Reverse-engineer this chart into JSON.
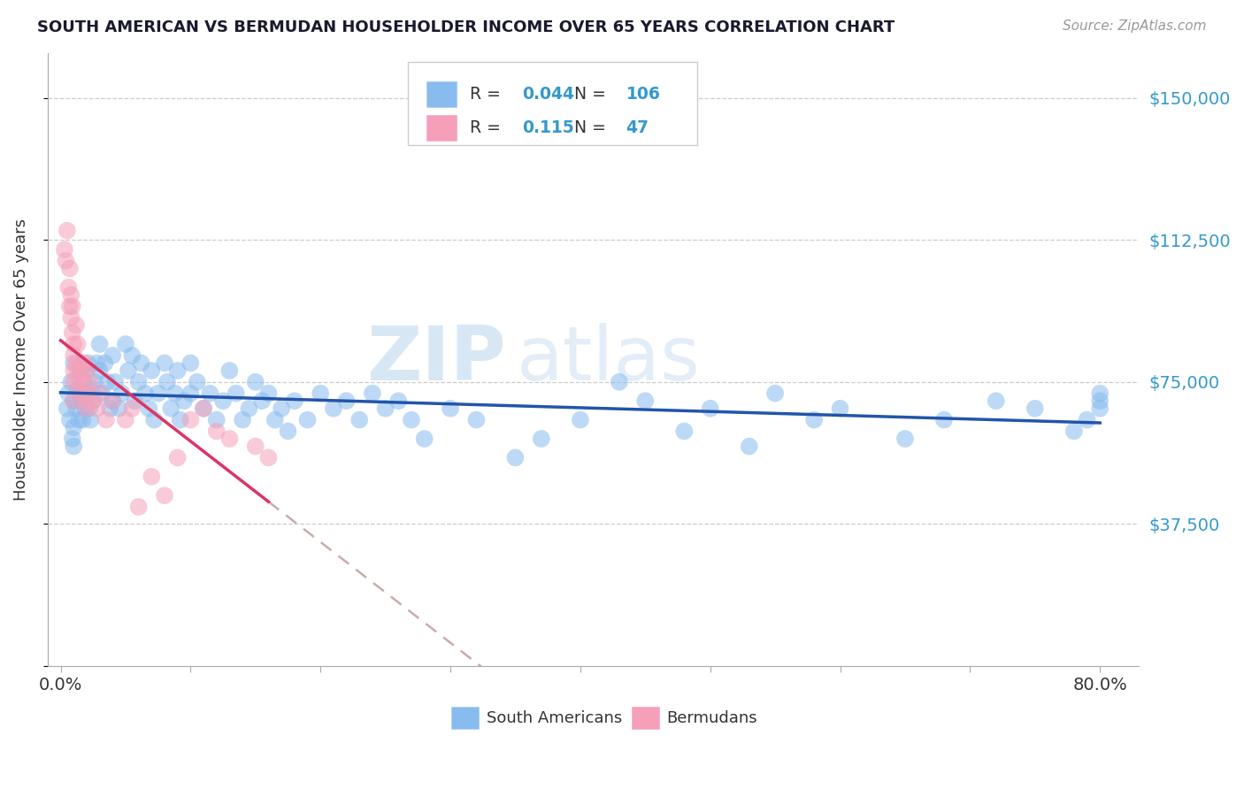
{
  "title": "SOUTH AMERICAN VS BERMUDAN HOUSEHOLDER INCOME OVER 65 YEARS CORRELATION CHART",
  "source": "Source: ZipAtlas.com",
  "ylabel": "Householder Income Over 65 years",
  "y_ticks": [
    0,
    37500,
    75000,
    112500,
    150000
  ],
  "y_tick_labels": [
    "",
    "$37,500",
    "$75,000",
    "$112,500",
    "$150,000"
  ],
  "x_range": [
    0,
    0.8
  ],
  "y_range": [
    0,
    162000
  ],
  "legend_blue_R": "0.044",
  "legend_blue_N": "106",
  "legend_pink_R": "0.115",
  "legend_pink_N": "47",
  "watermark_zip": "ZIP",
  "watermark_atlas": "atlas",
  "blue_color": "#88bbee",
  "pink_color": "#f5a0b8",
  "trend_blue_color": "#2255aa",
  "trend_pink_color": "#dd3366",
  "trend_gray_color": "#ccaaaa",
  "blue_scatter_x": [
    0.005,
    0.006,
    0.007,
    0.008,
    0.009,
    0.01,
    0.01,
    0.01,
    0.01,
    0.012,
    0.013,
    0.014,
    0.015,
    0.015,
    0.016,
    0.017,
    0.018,
    0.019,
    0.02,
    0.02,
    0.021,
    0.022,
    0.023,
    0.024,
    0.025,
    0.026,
    0.028,
    0.03,
    0.03,
    0.032,
    0.034,
    0.036,
    0.038,
    0.04,
    0.04,
    0.042,
    0.045,
    0.047,
    0.05,
    0.052,
    0.055,
    0.057,
    0.06,
    0.062,
    0.065,
    0.068,
    0.07,
    0.072,
    0.075,
    0.08,
    0.082,
    0.085,
    0.088,
    0.09,
    0.092,
    0.095,
    0.1,
    0.1,
    0.105,
    0.11,
    0.115,
    0.12,
    0.125,
    0.13,
    0.135,
    0.14,
    0.145,
    0.15,
    0.155,
    0.16,
    0.165,
    0.17,
    0.175,
    0.18,
    0.19,
    0.2,
    0.21,
    0.22,
    0.23,
    0.24,
    0.25,
    0.26,
    0.27,
    0.28,
    0.3,
    0.32,
    0.35,
    0.37,
    0.4,
    0.43,
    0.45,
    0.48,
    0.5,
    0.53,
    0.55,
    0.58,
    0.6,
    0.65,
    0.68,
    0.72,
    0.75,
    0.78,
    0.79,
    0.8,
    0.8,
    0.8
  ],
  "blue_scatter_y": [
    68000,
    72000,
    65000,
    75000,
    60000,
    70000,
    63000,
    58000,
    80000,
    68000,
    73000,
    65000,
    72000,
    78000,
    70000,
    65000,
    75000,
    68000,
    72000,
    78000,
    80000,
    68000,
    65000,
    73000,
    70000,
    75000,
    80000,
    85000,
    78000,
    72000,
    80000,
    75000,
    68000,
    82000,
    70000,
    75000,
    68000,
    72000,
    85000,
    78000,
    82000,
    70000,
    75000,
    80000,
    72000,
    68000,
    78000,
    65000,
    72000,
    80000,
    75000,
    68000,
    72000,
    78000,
    65000,
    70000,
    80000,
    72000,
    75000,
    68000,
    72000,
    65000,
    70000,
    78000,
    72000,
    65000,
    68000,
    75000,
    70000,
    72000,
    65000,
    68000,
    62000,
    70000,
    65000,
    72000,
    68000,
    70000,
    65000,
    72000,
    68000,
    70000,
    65000,
    60000,
    68000,
    65000,
    55000,
    60000,
    65000,
    75000,
    70000,
    62000,
    68000,
    58000,
    72000,
    65000,
    68000,
    60000,
    65000,
    70000,
    68000,
    62000,
    65000,
    70000,
    68000,
    72000
  ],
  "pink_scatter_x": [
    0.003,
    0.004,
    0.005,
    0.006,
    0.007,
    0.007,
    0.008,
    0.008,
    0.009,
    0.009,
    0.01,
    0.01,
    0.01,
    0.01,
    0.01,
    0.012,
    0.012,
    0.013,
    0.013,
    0.014,
    0.015,
    0.015,
    0.016,
    0.017,
    0.018,
    0.019,
    0.02,
    0.02,
    0.021,
    0.022,
    0.025,
    0.028,
    0.03,
    0.035,
    0.04,
    0.05,
    0.055,
    0.06,
    0.07,
    0.08,
    0.09,
    0.1,
    0.11,
    0.12,
    0.13,
    0.15,
    0.16
  ],
  "pink_scatter_y": [
    110000,
    107000,
    115000,
    100000,
    95000,
    105000,
    92000,
    98000,
    88000,
    95000,
    78000,
    82000,
    75000,
    70000,
    85000,
    90000,
    80000,
    78000,
    85000,
    75000,
    80000,
    72000,
    78000,
    75000,
    80000,
    70000,
    78000,
    68000,
    72000,
    75000,
    70000,
    68000,
    72000,
    65000,
    70000,
    65000,
    68000,
    42000,
    50000,
    45000,
    55000,
    65000,
    68000,
    62000,
    60000,
    58000,
    55000
  ]
}
